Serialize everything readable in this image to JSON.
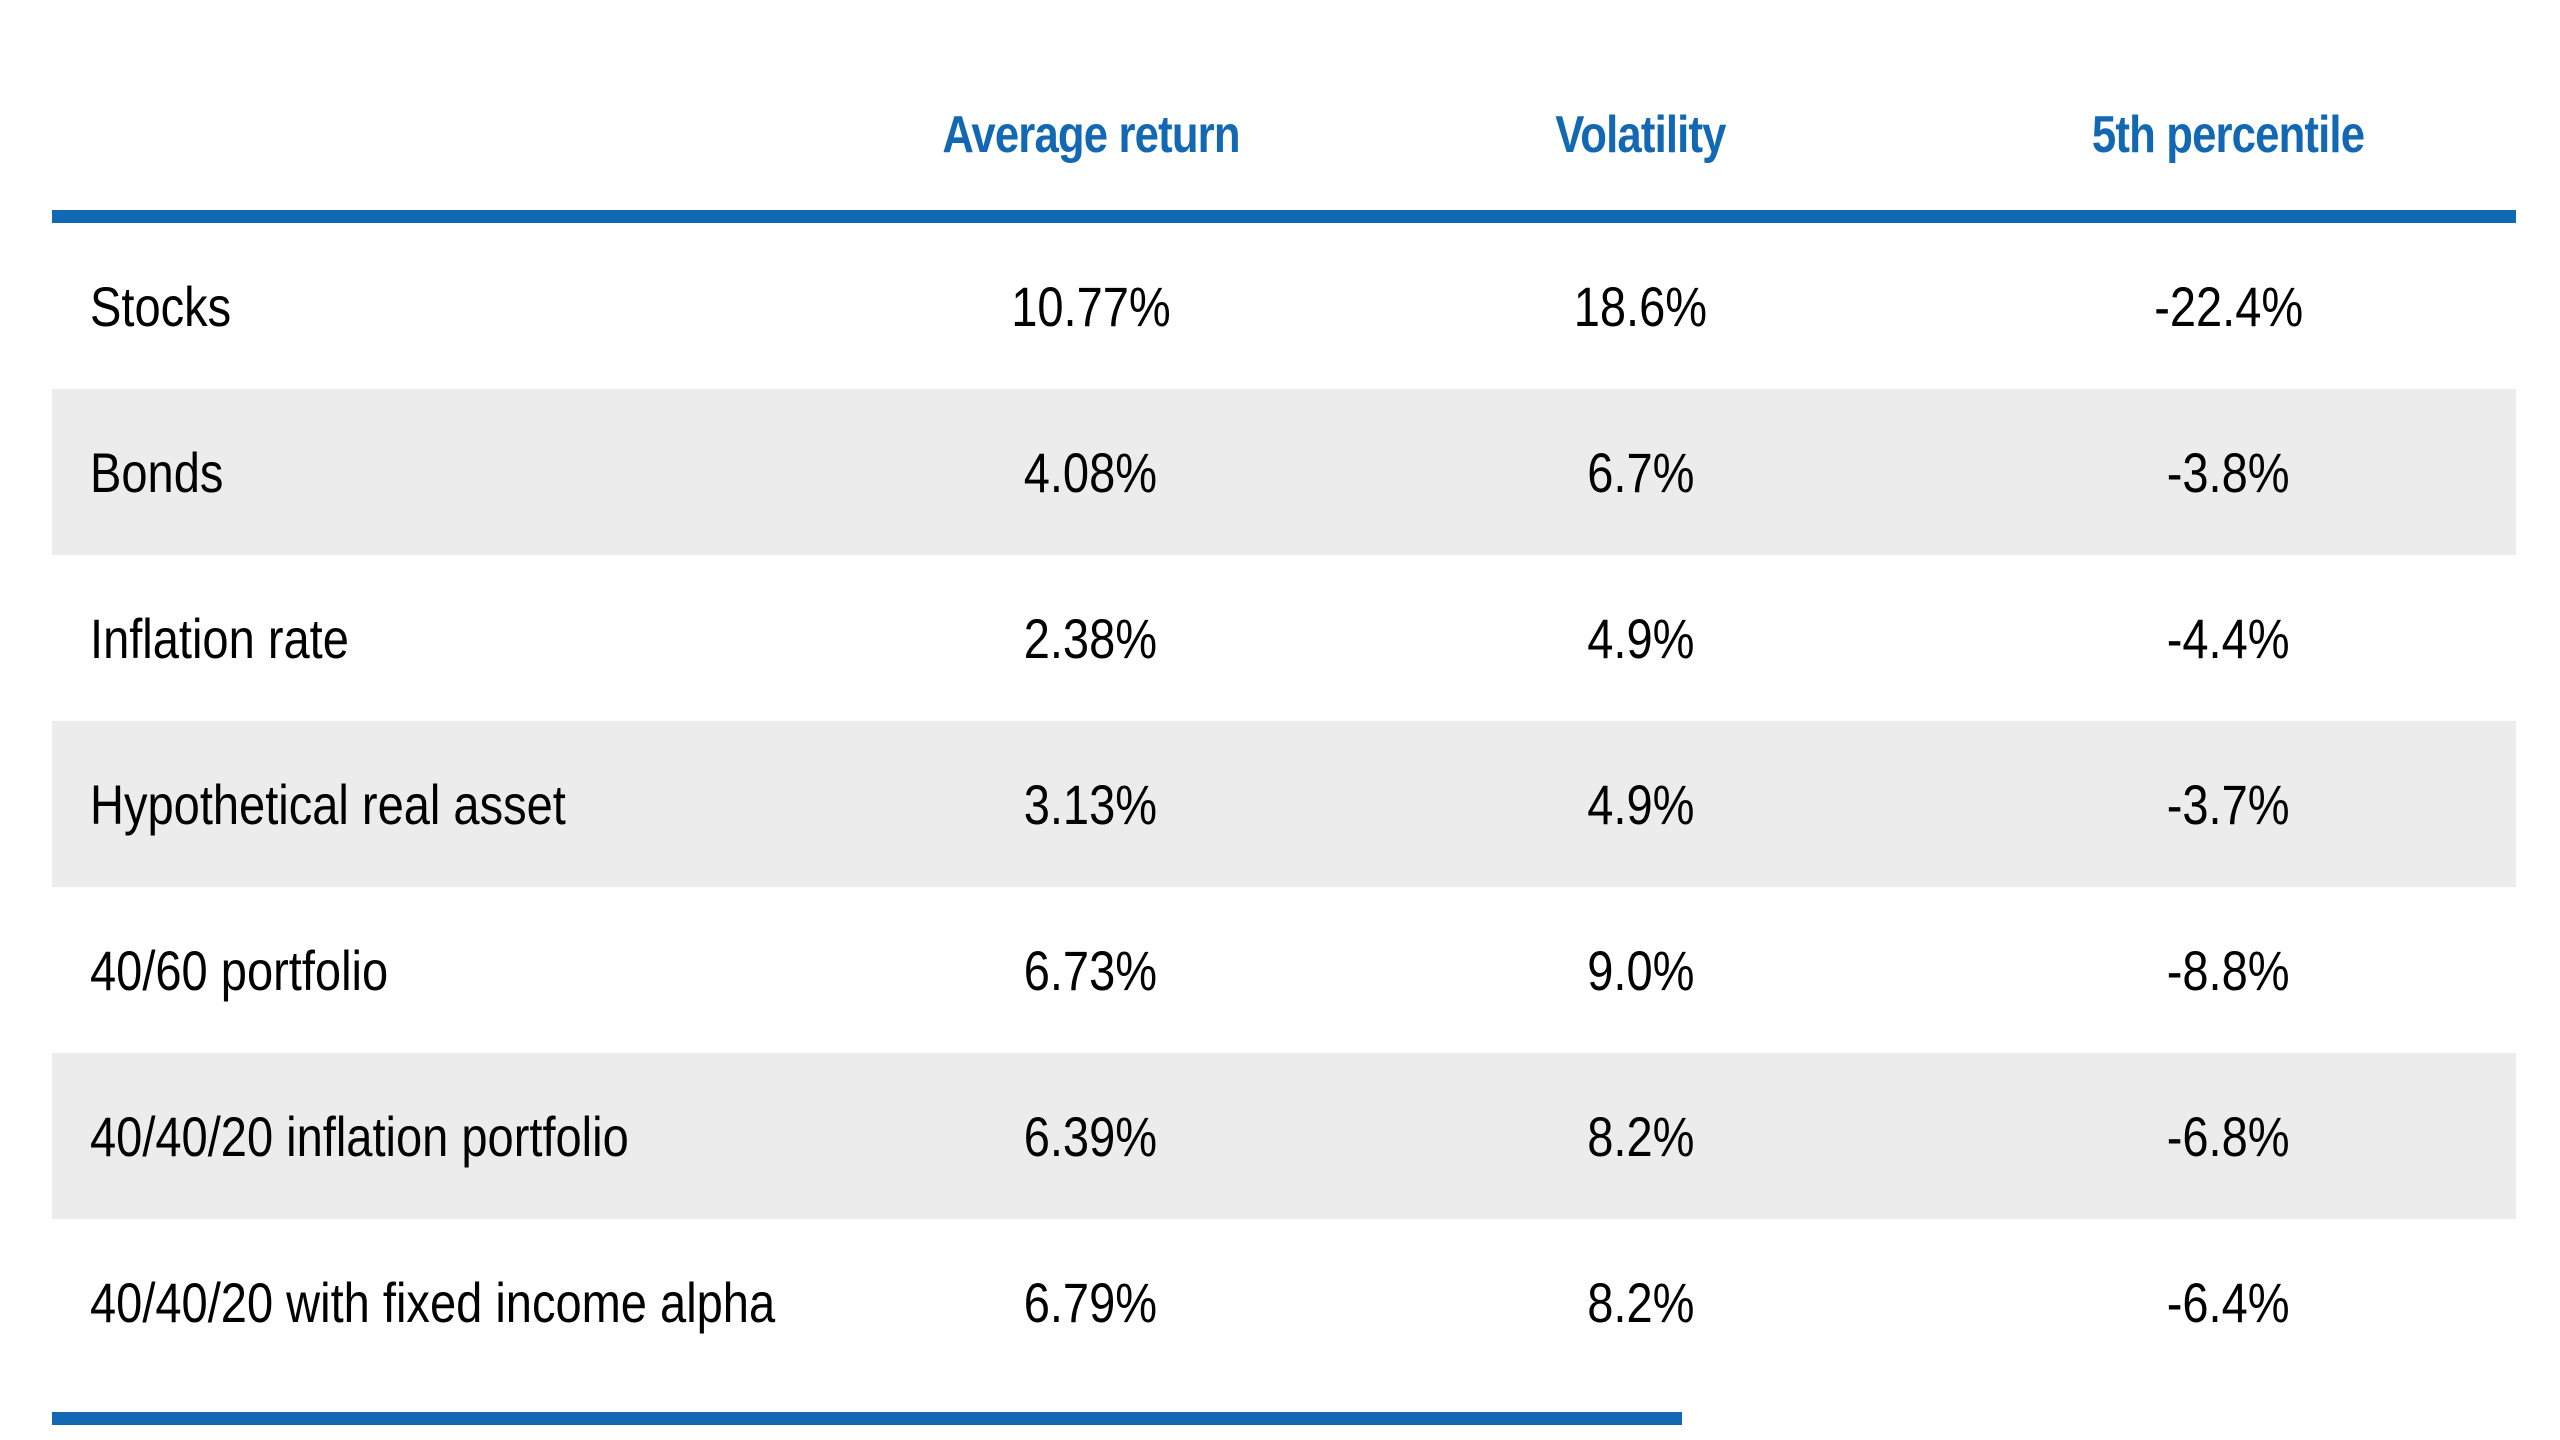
{
  "chart_data": {
    "type": "table",
    "title": "",
    "categories": [
      "Stocks",
      "Bonds",
      "Inflation rate",
      "Hypothetical real asset",
      "40/60 portfolio",
      "40/40/20 inflation portfolio",
      "40/40/20 with fixed income alpha"
    ],
    "series": [
      {
        "name": "Average return",
        "unit": "%",
        "values": [
          10.77,
          4.08,
          2.38,
          3.13,
          6.73,
          6.39,
          6.79
        ]
      },
      {
        "name": "Volatility",
        "unit": "%",
        "values": [
          18.6,
          6.7,
          4.9,
          4.9,
          9.0,
          8.2,
          8.2
        ]
      },
      {
        "name": "5th percentile",
        "unit": "%",
        "values": [
          -22.4,
          -3.8,
          -4.4,
          -3.7,
          -8.8,
          -6.8,
          -6.4
        ]
      }
    ],
    "layout": {
      "striped_rows": true,
      "header_rule": true,
      "footer_rule": true,
      "value_alignment": "center"
    }
  },
  "table": {
    "column_headers": [
      "Average return",
      "Volatility",
      "5th percentile"
    ],
    "rows": [
      {
        "label": "Stocks",
        "values": [
          "10.77%",
          "18.6%",
          "-22.4%"
        ]
      },
      {
        "label": "Bonds",
        "values": [
          "4.08%",
          "6.7%",
          "-3.8%"
        ]
      },
      {
        "label": "Inflation rate",
        "values": [
          "2.38%",
          "4.9%",
          "-4.4%"
        ]
      },
      {
        "label": "Hypothetical real asset",
        "values": [
          "3.13%",
          "4.9%",
          "-3.7%"
        ]
      },
      {
        "label": "40/60 portfolio",
        "values": [
          "6.73%",
          "9.0%",
          "-8.8%"
        ]
      },
      {
        "label": "40/40/20 inflation portfolio",
        "values": [
          "6.39%",
          "8.2%",
          "-6.8%"
        ]
      },
      {
        "label": "40/40/20 with fixed income alpha",
        "values": [
          "6.79%",
          "8.2%",
          "-6.4%"
        ]
      }
    ]
  },
  "colors": {
    "accent_blue": "#1268B2",
    "stripe_gray": "#ECECEC",
    "text_black": "#000000",
    "background": "#FFFFFF"
  }
}
